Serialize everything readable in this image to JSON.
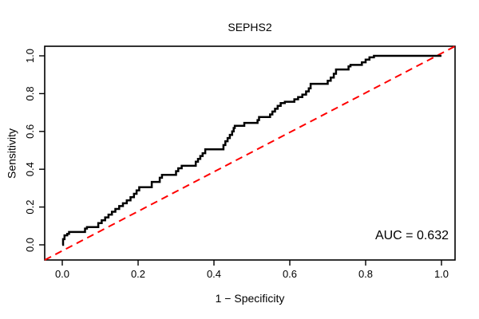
{
  "chart_data": {
    "type": "line",
    "subtype": "roc-step-curve",
    "title": "SEPHS2",
    "xlabel": "1 − Specificity",
    "ylabel": "Sensitivity",
    "xlim": [
      0.0,
      1.0
    ],
    "ylim": [
      0.0,
      1.0
    ],
    "x_ticks": [
      "0.0",
      "0.2",
      "0.4",
      "0.6",
      "0.8",
      "1.0"
    ],
    "y_ticks": [
      "0.0",
      "0.2",
      "0.4",
      "0.6",
      "0.8",
      "1.0"
    ],
    "grid": "off",
    "auc": 0.632,
    "auc_label": "AUC = 0.632",
    "curve_color": "#000000",
    "diagonal_color": "#ff0000",
    "diagonal_style": "dashed",
    "diagonal": {
      "from": [
        0.0,
        0.0
      ],
      "to": [
        1.0,
        1.0
      ]
    },
    "series": [
      {
        "name": "ROC curve",
        "step": "hv",
        "points": [
          [
            0.0,
            0.0
          ],
          [
            0.002,
            0.03
          ],
          [
            0.006,
            0.05
          ],
          [
            0.013,
            0.058
          ],
          [
            0.018,
            0.068
          ],
          [
            0.06,
            0.086
          ],
          [
            0.065,
            0.094
          ],
          [
            0.095,
            0.115
          ],
          [
            0.104,
            0.13
          ],
          [
            0.113,
            0.145
          ],
          [
            0.122,
            0.16
          ],
          [
            0.131,
            0.175
          ],
          [
            0.14,
            0.19
          ],
          [
            0.15,
            0.205
          ],
          [
            0.16,
            0.22
          ],
          [
            0.17,
            0.235
          ],
          [
            0.18,
            0.252
          ],
          [
            0.189,
            0.27
          ],
          [
            0.196,
            0.288
          ],
          [
            0.203,
            0.305
          ],
          [
            0.236,
            0.333
          ],
          [
            0.257,
            0.355
          ],
          [
            0.263,
            0.37
          ],
          [
            0.3,
            0.39
          ],
          [
            0.306,
            0.405
          ],
          [
            0.315,
            0.418
          ],
          [
            0.352,
            0.44
          ],
          [
            0.358,
            0.455
          ],
          [
            0.364,
            0.47
          ],
          [
            0.37,
            0.485
          ],
          [
            0.377,
            0.505
          ],
          [
            0.425,
            0.528
          ],
          [
            0.43,
            0.548
          ],
          [
            0.436,
            0.565
          ],
          [
            0.442,
            0.582
          ],
          [
            0.448,
            0.6
          ],
          [
            0.452,
            0.618
          ],
          [
            0.455,
            0.63
          ],
          [
            0.48,
            0.645
          ],
          [
            0.515,
            0.66
          ],
          [
            0.519,
            0.676
          ],
          [
            0.548,
            0.69
          ],
          [
            0.554,
            0.705
          ],
          [
            0.561,
            0.72
          ],
          [
            0.568,
            0.735
          ],
          [
            0.576,
            0.75
          ],
          [
            0.587,
            0.757
          ],
          [
            0.612,
            0.77
          ],
          [
            0.622,
            0.782
          ],
          [
            0.633,
            0.795
          ],
          [
            0.643,
            0.812
          ],
          [
            0.65,
            0.828
          ],
          [
            0.655,
            0.852
          ],
          [
            0.7,
            0.868
          ],
          [
            0.708,
            0.885
          ],
          [
            0.716,
            0.905
          ],
          [
            0.722,
            0.928
          ],
          [
            0.755,
            0.944
          ],
          [
            0.76,
            0.952
          ],
          [
            0.79,
            0.966
          ],
          [
            0.8,
            0.98
          ],
          [
            0.81,
            0.992
          ],
          [
            0.822,
            1.0
          ],
          [
            1.0,
            1.0
          ]
        ]
      }
    ]
  }
}
